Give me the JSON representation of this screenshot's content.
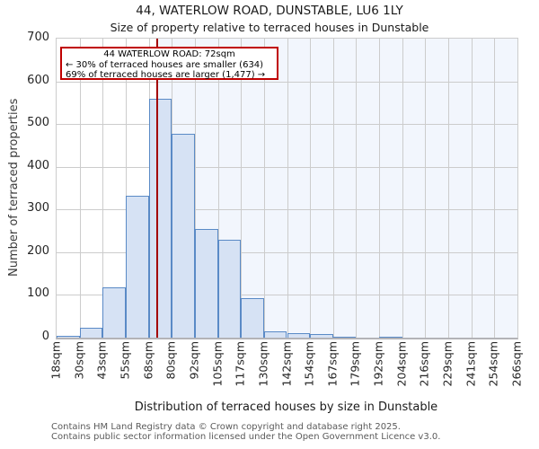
{
  "title": "44, WATERLOW ROAD, DUNSTABLE, LU6 1LY",
  "subtitle": "Size of property relative to terraced houses in Dunstable",
  "annotation": {
    "line1": "44 WATERLOW ROAD: 72sqm",
    "line2": "← 30% of terraced houses are smaller (634)",
    "line3": "69% of terraced houses are larger (1,477) →"
  },
  "chart_data": {
    "type": "bar",
    "title": "44, WATERLOW ROAD, DUNSTABLE, LU6 1LY",
    "subtitle": "Size of property relative to terraced houses in Dunstable",
    "xlabel": "Distribution of terraced houses by size in Dunstable",
    "ylabel": "Number of terraced properties",
    "bin_edges_sqm": [
      18,
      30,
      43,
      55,
      68,
      80,
      92,
      105,
      117,
      130,
      142,
      154,
      167,
      179,
      192,
      204,
      216,
      229,
      241,
      254,
      266
    ],
    "x_tick_labels": [
      "18sqm",
      "30sqm",
      "43sqm",
      "55sqm",
      "68sqm",
      "80sqm",
      "92sqm",
      "105sqm",
      "117sqm",
      "130sqm",
      "142sqm",
      "154sqm",
      "167sqm",
      "179sqm",
      "192sqm",
      "204sqm",
      "216sqm",
      "229sqm",
      "241sqm",
      "254sqm",
      "266sqm"
    ],
    "values": [
      5,
      23,
      118,
      333,
      560,
      478,
      254,
      230,
      93,
      15,
      10,
      8,
      3,
      0,
      2,
      0,
      0,
      0,
      0,
      0
    ],
    "y_ticks": [
      0,
      100,
      200,
      300,
      400,
      500,
      600,
      700
    ],
    "ylim": [
      0,
      700
    ],
    "grid": true,
    "legend": null,
    "marker": {
      "value_sqm": 72,
      "label": "44 WATERLOW ROAD: 72sqm"
    }
  },
  "footer": {
    "line1": "Contains HM Land Registry data © Crown copyright and database right 2025.",
    "line2": "Contains public sector information licensed under the Open Government Licence v3.0."
  },
  "colors": {
    "bar_fill": "#d6e2f4",
    "bar_edge": "#5a8ac6",
    "marker_red": "#a30000",
    "annotation_border": "#c00000",
    "shade_bg": "#f2f6fd",
    "grid_color": "#cccccc",
    "axis_bottom": "#b3b3b7"
  }
}
